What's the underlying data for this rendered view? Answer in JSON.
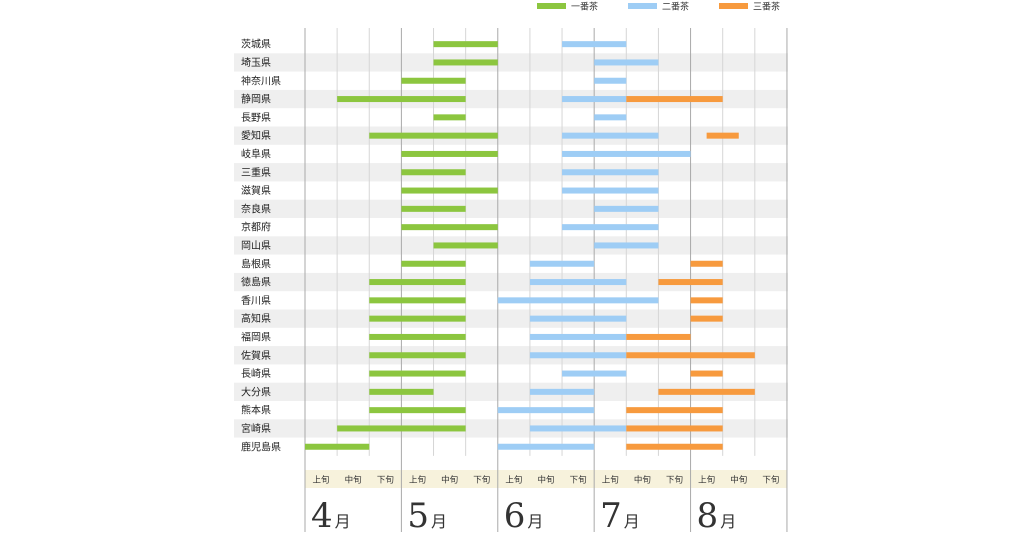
{
  "chart_data": {
    "type": "bar",
    "orientation": "horizontal-range",
    "legend_position": "top-right",
    "series": [
      {
        "name": "一番茶",
        "color": "#8cc63f"
      },
      {
        "name": "二番茶",
        "color": "#9ecdf5"
      },
      {
        "name": "三番茶",
        "color": "#f79a3e"
      }
    ],
    "months": [
      {
        "num": "4",
        "unit": "月"
      },
      {
        "num": "5",
        "unit": "月"
      },
      {
        "num": "6",
        "unit": "月"
      },
      {
        "num": "7",
        "unit": "月"
      },
      {
        "num": "8",
        "unit": "月"
      }
    ],
    "xun_labels": [
      "上旬",
      "中旬",
      "下旬"
    ],
    "x_range_dekads": [
      0,
      15
    ],
    "rows": [
      {
        "pref": "茨城県",
        "bars": [
          [
            0,
            4,
            6
          ],
          [
            1,
            8,
            10
          ]
        ]
      },
      {
        "pref": "埼玉県",
        "bars": [
          [
            0,
            4,
            6
          ],
          [
            1,
            9,
            11
          ]
        ]
      },
      {
        "pref": "神奈川県",
        "bars": [
          [
            0,
            3,
            5
          ],
          [
            1,
            9,
            10
          ]
        ]
      },
      {
        "pref": "静岡県",
        "bars": [
          [
            0,
            1,
            5
          ],
          [
            1,
            8,
            10
          ],
          [
            2,
            10,
            13
          ]
        ]
      },
      {
        "pref": "長野県",
        "bars": [
          [
            0,
            4,
            5
          ],
          [
            1,
            9,
            10
          ]
        ]
      },
      {
        "pref": "愛知県",
        "bars": [
          [
            0,
            2,
            6
          ],
          [
            1,
            8,
            11
          ],
          [
            2,
            12.5,
            13.5
          ]
        ]
      },
      {
        "pref": "岐阜県",
        "bars": [
          [
            0,
            3,
            6
          ],
          [
            1,
            8,
            12
          ]
        ]
      },
      {
        "pref": "三重県",
        "bars": [
          [
            0,
            3,
            5
          ],
          [
            1,
            8,
            11
          ]
        ]
      },
      {
        "pref": "滋賀県",
        "bars": [
          [
            0,
            3,
            6
          ],
          [
            1,
            8,
            11
          ]
        ]
      },
      {
        "pref": "奈良県",
        "bars": [
          [
            0,
            3,
            5
          ],
          [
            1,
            9,
            11
          ]
        ]
      },
      {
        "pref": "京都府",
        "bars": [
          [
            0,
            3,
            6
          ],
          [
            1,
            8,
            11
          ]
        ]
      },
      {
        "pref": "岡山県",
        "bars": [
          [
            0,
            4,
            6
          ],
          [
            1,
            9,
            11
          ]
        ]
      },
      {
        "pref": "島根県",
        "bars": [
          [
            0,
            3,
            5
          ],
          [
            1,
            7,
            9
          ],
          [
            2,
            12,
            13
          ]
        ]
      },
      {
        "pref": "徳島県",
        "bars": [
          [
            0,
            2,
            5
          ],
          [
            1,
            7,
            10
          ],
          [
            2,
            11,
            13
          ]
        ]
      },
      {
        "pref": "香川県",
        "bars": [
          [
            0,
            2,
            5
          ],
          [
            1,
            6,
            11
          ],
          [
            2,
            12,
            13
          ]
        ]
      },
      {
        "pref": "高知県",
        "bars": [
          [
            0,
            2,
            5
          ],
          [
            1,
            7,
            10
          ],
          [
            2,
            12,
            13
          ]
        ]
      },
      {
        "pref": "福岡県",
        "bars": [
          [
            0,
            2,
            5
          ],
          [
            1,
            7,
            10
          ],
          [
            2,
            10,
            12
          ]
        ]
      },
      {
        "pref": "佐賀県",
        "bars": [
          [
            0,
            2,
            5
          ],
          [
            1,
            7,
            10
          ],
          [
            2,
            10,
            14
          ]
        ]
      },
      {
        "pref": "長崎県",
        "bars": [
          [
            0,
            2,
            5
          ],
          [
            1,
            8,
            10
          ],
          [
            2,
            12,
            13
          ]
        ]
      },
      {
        "pref": "大分県",
        "bars": [
          [
            0,
            2,
            4
          ],
          [
            1,
            7,
            9
          ],
          [
            2,
            11,
            14
          ]
        ]
      },
      {
        "pref": "熊本県",
        "bars": [
          [
            0,
            2,
            5
          ],
          [
            1,
            6,
            9
          ],
          [
            2,
            10,
            13
          ]
        ]
      },
      {
        "pref": "宮崎県",
        "bars": [
          [
            0,
            1,
            5
          ],
          [
            1,
            7,
            10
          ],
          [
            2,
            10,
            13
          ]
        ]
      },
      {
        "pref": "鹿児島県",
        "bars": [
          [
            0,
            0,
            2
          ],
          [
            1,
            6,
            9
          ],
          [
            2,
            10,
            13
          ]
        ]
      }
    ]
  }
}
